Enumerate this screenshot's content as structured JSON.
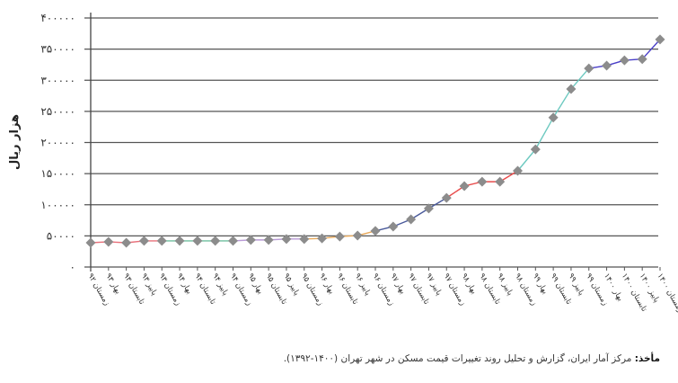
{
  "chart_data": {
    "type": "line",
    "title": "",
    "xlabel": "",
    "ylabel": "هزار ریال",
    "ylim": [
      0,
      400000
    ],
    "grid": true,
    "legend": "none",
    "yticks": [
      0,
      50000,
      100000,
      150000,
      200000,
      250000,
      300000,
      350000,
      400000
    ],
    "ytick_labels": [
      "۰",
      "۵۰۰۰۰",
      "۱۰۰۰۰۰",
      "۱۵۰۰۰۰",
      "۲۰۰۰۰۰",
      "۲۵۰۰۰۰",
      "۳۰۰۰۰۰",
      "۳۵۰۰۰۰",
      "۴۰۰۰۰۰"
    ],
    "categories": [
      "زمستان ۹۲",
      "بهار ۹۳",
      "تابستان ۹۳",
      "پاییز ۹۳",
      "زمستان ۹۳",
      "بهار ۹۴",
      "تابستان ۹۴",
      "پاییز ۹۴",
      "زمستان ۹۴",
      "بهار ۹۵",
      "تابستان ۹۵",
      "پاییز ۹۵",
      "زمستان ۹۵",
      "بهار ۹۶",
      "تابستان ۹۶",
      "پاییز ۹۶",
      "زمستان ۹۶",
      "بهار ۹۷",
      "تابستان ۹۷",
      "پاییز ۹۷",
      "زمستان ۹۷",
      "بهار ۹۸",
      "تابستان ۹۸",
      "پاییز ۹۸",
      "زمستان ۹۸",
      "بهار ۹۹",
      "تابستان ۹۹",
      "پاییز ۹۹",
      "زمستان ۹۹",
      "بهار ۱۴۰۰",
      "تابستان ۱۴۰۰",
      "پاییز ۱۴۰۰",
      "زمستان ۱۴۰۰"
    ],
    "series": [
      {
        "name": "قیمت مسکن",
        "values": [
          39000,
          40500,
          39000,
          42000,
          42000,
          42000,
          42000,
          42000,
          42000,
          43500,
          43500,
          45000,
          45000,
          46000,
          49000,
          50500,
          58000,
          65000,
          76500,
          94000,
          111000,
          130000,
          137000,
          137000,
          154500,
          189000,
          240000,
          286000,
          319000,
          323500,
          332000,
          334000,
          365500
        ],
        "marker": "diamond",
        "marker_color": "#8c8c8c"
      }
    ],
    "segment_colors": [
      "#e8707a",
      "#6fbf9f",
      "#b99ad6",
      "#e9a95a",
      "#4a5a9a",
      "#e84a4a",
      "#6cc9c0",
      "#4a3fc8",
      "#f0b060"
    ]
  },
  "caption": {
    "label": "مأخذ:",
    "text": " مرکز آمار ایران، گزارش و تحلیل روند تغییرات قیمت مسکن در شهر تهران (۱۴۰۰-۱۳۹۲)."
  }
}
